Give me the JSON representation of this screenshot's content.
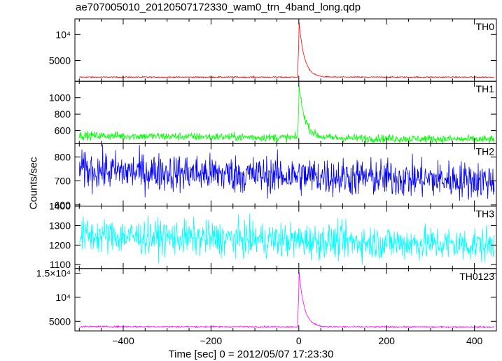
{
  "chart_data": {
    "type": "line",
    "title": "ae707005010_20120507172330_wam0_trn_4band_long.qdp",
    "xlabel": "Time [sec] 0 = 2012/05/07 17:23:30",
    "ylabel": "Counts/sec",
    "xlim": [
      -510,
      450
    ],
    "x_ticks": [
      "-400",
      "-200",
      "0",
      "200",
      "400"
    ],
    "grid": false,
    "panels": [
      {
        "name": "TH0",
        "color": "#ff0000",
        "ylim": [
          1000,
          13000
        ],
        "y_ticks": [
          {
            "value": 5000,
            "label": "5000"
          },
          {
            "value": 10000,
            "label": "10⁴"
          }
        ],
        "baseline": 1800,
        "noise": 60,
        "trend": [
          1800,
          1800
        ],
        "flare": {
          "peak": 12900,
          "peak_time": 0,
          "decay": 12,
          "second_bump": {
            "time": 14,
            "value": 4300
          }
        }
      },
      {
        "name": "TH1",
        "color": "#00ff00",
        "ylim": [
          440,
          1200
        ],
        "y_ticks": [
          {
            "value": 600,
            "label": "600"
          },
          {
            "value": 800,
            "label": "800"
          },
          {
            "value": 1000,
            "label": "1000"
          }
        ],
        "baseline": 530,
        "noise": 25,
        "trend": [
          540,
          490
        ],
        "flare": {
          "peak": 1180,
          "peak_time": 0,
          "decay": 14
        }
      },
      {
        "name": "TH2",
        "color": "#0000ff",
        "ylim": [
          595,
          855
        ],
        "y_ticks": [
          {
            "value": 600,
            "label": "600"
          },
          {
            "value": 700,
            "label": "700"
          },
          {
            "value": 800,
            "label": "800"
          }
        ],
        "baseline": 745,
        "noise": 40,
        "trend": [
          745,
          700
        ],
        "flare": null
      },
      {
        "name": "TH3",
        "color": "#00ffff",
        "ylim": [
          1080,
          1400
        ],
        "y_ticks": [
          {
            "value": 1100,
            "label": "1100"
          },
          {
            "value": 1200,
            "label": "1200"
          },
          {
            "value": 1300,
            "label": "1300"
          },
          {
            "value": 1400,
            "label": "1400"
          }
        ],
        "baseline": 1260,
        "noise": 45,
        "trend": [
          1250,
          1200
        ],
        "flare": null
      },
      {
        "name": "TH0123",
        "color": "#ff00ff",
        "ylim": [
          3000,
          16000
        ],
        "y_ticks": [
          {
            "value": 5000,
            "label": "5000"
          },
          {
            "value": 10000,
            "label": "10⁴"
          },
          {
            "value": 15000,
            "label": "1.5×10⁴"
          }
        ],
        "baseline": 3900,
        "noise": 80,
        "trend": [
          3900,
          3800
        ],
        "flare": {
          "peak": 15800,
          "peak_time": 0,
          "decay": 12
        }
      }
    ]
  }
}
